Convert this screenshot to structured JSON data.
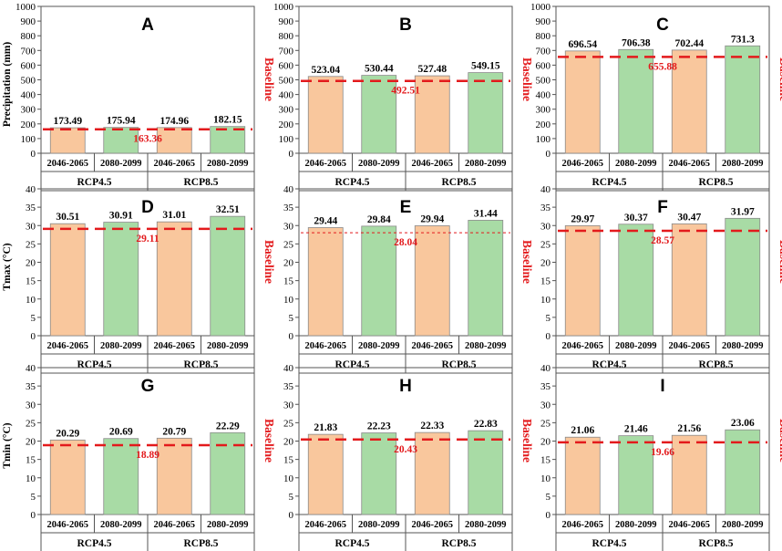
{
  "figure": {
    "baseline_word": "Baseline",
    "colors": {
      "bar_period1": "#f9c79d",
      "bar_period2": "#a8dba5",
      "baseline": "#e31a1c",
      "axis": "#555555"
    }
  },
  "chart_data": [
    {
      "type": "bar",
      "letter": "A",
      "ylabel": "Precipitation (mm)",
      "ylim": [
        0,
        1000
      ],
      "ytick_step": 100,
      "categories": [
        "2046-2065",
        "2080-2099",
        "2046-2065",
        "2080-2099"
      ],
      "groups": [
        "RCP4.5",
        "RCP8.5"
      ],
      "values": [
        173.49,
        175.94,
        174.96,
        182.15
      ],
      "value_labels": [
        "173.49",
        "175.94",
        "174.96",
        "182.15"
      ],
      "baseline": 163.36,
      "baseline_label": "163.36"
    },
    {
      "type": "bar",
      "letter": "B",
      "ylabel": "",
      "ylim": [
        0,
        1000
      ],
      "ytick_step": 100,
      "categories": [
        "2046-2065",
        "2080-2099",
        "2046-2065",
        "2080-2099"
      ],
      "groups": [
        "RCP4.5",
        "RCP8.5"
      ],
      "values": [
        523.04,
        530.44,
        527.48,
        549.15
      ],
      "value_labels": [
        "523.04",
        "530.44",
        "527.48",
        "549.15"
      ],
      "baseline": 492.51,
      "baseline_label": "492.51"
    },
    {
      "type": "bar",
      "letter": "C",
      "ylabel": "",
      "ylim": [
        0,
        1000
      ],
      "ytick_step": 100,
      "categories": [
        "2046-2065",
        "2080-2099",
        "2046-2065",
        "2080-2099"
      ],
      "groups": [
        "RCP4.5",
        "RCP8.5"
      ],
      "values": [
        696.54,
        706.38,
        702.44,
        731.3
      ],
      "value_labels": [
        "696.54",
        "706.38",
        "702.44",
        "731.3"
      ],
      "baseline": 655.88,
      "baseline_label": "655.88"
    },
    {
      "type": "bar",
      "letter": "D",
      "ylabel": "Tmax (°C)",
      "ylim": [
        0,
        40
      ],
      "ytick_step": 5,
      "categories": [
        "2046-2065",
        "2080-2099",
        "2046-2065",
        "2080-2099"
      ],
      "groups": [
        "RCP4.5",
        "RCP8.5"
      ],
      "values": [
        30.51,
        30.91,
        31.01,
        32.51
      ],
      "value_labels": [
        "30.51",
        "30.91",
        "31.01",
        "32.51"
      ],
      "baseline": 29.11,
      "baseline_label": "29.11"
    },
    {
      "type": "bar",
      "letter": "E",
      "ylabel": "",
      "ylim": [
        0,
        40
      ],
      "ytick_step": 5,
      "categories": [
        "2046-2065",
        "2080-2099",
        "2046-2065",
        "2080-2099"
      ],
      "groups": [
        "RCP4.5",
        "RCP8.5"
      ],
      "values": [
        29.44,
        29.84,
        29.94,
        31.44
      ],
      "value_labels": [
        "29.44",
        "29.84",
        "29.94",
        "31.44"
      ],
      "baseline": 28.04,
      "baseline_label": "28.04"
    },
    {
      "type": "bar",
      "letter": "F",
      "ylabel": "",
      "ylim": [
        0,
        40
      ],
      "ytick_step": 5,
      "categories": [
        "2046-2065",
        "2080-2099",
        "2046-2065",
        "2080-2099"
      ],
      "groups": [
        "RCP4.5",
        "RCP8.5"
      ],
      "values": [
        29.97,
        30.37,
        30.47,
        31.97
      ],
      "value_labels": [
        "29.97",
        "30.37",
        "30.47",
        "31.97"
      ],
      "baseline": 28.57,
      "baseline_label": "28.57"
    },
    {
      "type": "bar",
      "letter": "G",
      "ylabel": "Tmin (°C)",
      "ylim": [
        0,
        40
      ],
      "ytick_step": 5,
      "categories": [
        "2046-2065",
        "2080-2099",
        "2046-2065",
        "2080-2099"
      ],
      "groups": [
        "RCP4.5",
        "RCP8.5"
      ],
      "values": [
        20.29,
        20.69,
        20.79,
        22.29
      ],
      "value_labels": [
        "20.29",
        "20.69",
        "20.79",
        "22.29"
      ],
      "baseline": 18.89,
      "baseline_label": "18.89"
    },
    {
      "type": "bar",
      "letter": "H",
      "ylabel": "",
      "ylim": [
        0,
        40
      ],
      "ytick_step": 5,
      "categories": [
        "2046-2065",
        "2080-2099",
        "2046-2065",
        "2080-2099"
      ],
      "groups": [
        "RCP4.5",
        "RCP8.5"
      ],
      "values": [
        21.83,
        22.23,
        22.33,
        22.83
      ],
      "value_labels": [
        "21.83",
        "22.23",
        "22.33",
        "22.83"
      ],
      "baseline": 20.43,
      "baseline_label": "20.43"
    },
    {
      "type": "bar",
      "letter": "I",
      "ylabel": "",
      "ylim": [
        0,
        40
      ],
      "ytick_step": 5,
      "categories": [
        "2046-2065",
        "2080-2099",
        "2046-2065",
        "2080-2099"
      ],
      "groups": [
        "RCP4.5",
        "RCP8.5"
      ],
      "values": [
        21.06,
        21.46,
        21.56,
        23.06
      ],
      "value_labels": [
        "21.06",
        "21.46",
        "21.56",
        "23.06"
      ],
      "baseline": 19.66,
      "baseline_label": "19.66"
    }
  ]
}
